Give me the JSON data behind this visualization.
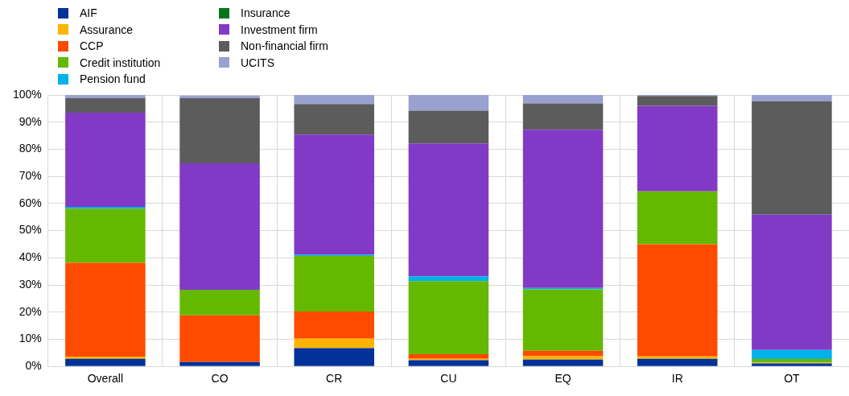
{
  "chart_data": {
    "type": "bar",
    "stacked": true,
    "categories": [
      "Overall",
      "CO",
      "CR",
      "CU",
      "EQ",
      "IR",
      "OT"
    ],
    "series": [
      {
        "name": "AIF",
        "color": "#003299",
        "values": [
          2.8,
          1.6,
          6.7,
          2.3,
          2.5,
          2.8,
          1.1
        ]
      },
      {
        "name": "Assurance",
        "color": "#ffb400",
        "values": [
          0.8,
          null,
          3.5,
          0.5,
          1.3,
          0.9,
          0.3
        ]
      },
      {
        "name": "CCP",
        "color": "#ff4b00",
        "values": [
          34.6,
          17.2,
          10.0,
          1.7,
          2.0,
          41.3,
          0
        ]
      },
      {
        "name": "Credit institution",
        "color": "#65b800",
        "values": [
          19.9,
          9.4,
          20.5,
          26.9,
          22.6,
          19.5,
          1.3
        ]
      },
      {
        "name": "Pension fund",
        "color": "#00b1ea",
        "values": [
          0.7,
          0,
          0.4,
          1.8,
          0.5,
          0,
          3.4
        ]
      },
      {
        "name": "Insurance",
        "color": "#007816",
        "values": [
          0,
          0,
          0,
          0,
          0,
          0,
          0
        ]
      },
      {
        "name": "Investment firm",
        "color": "#8139c6",
        "values": [
          34.7,
          46.6,
          44.3,
          48.9,
          58.3,
          31.5,
          49.8
        ]
      },
      {
        "name": "Non-financial firm",
        "color": "#5c5c5c",
        "values": [
          5.3,
          24.0,
          11.3,
          12.1,
          9.7,
          3.6,
          41.8
        ]
      },
      {
        "name": "UCITS",
        "color": "#98a1d0",
        "values": [
          1.2,
          1.0,
          3.3,
          5.8,
          3.1,
          0.4,
          2.3
        ]
      }
    ],
    "ylim": [
      0,
      100
    ],
    "yticks": [
      {
        "value": 0,
        "label": "0%"
      },
      {
        "value": 10,
        "label": "10%"
      },
      {
        "value": 20,
        "label": "20%"
      },
      {
        "value": 30,
        "label": "30%"
      },
      {
        "value": 40,
        "label": "40%"
      },
      {
        "value": 50,
        "label": "50%"
      },
      {
        "value": 60,
        "label": "60%"
      },
      {
        "value": 70,
        "label": "70%"
      },
      {
        "value": 80,
        "label": "80%"
      },
      {
        "value": 90,
        "label": "90%"
      },
      {
        "value": 100,
        "label": "100%"
      }
    ],
    "grid": true,
    "legend": "top left"
  }
}
